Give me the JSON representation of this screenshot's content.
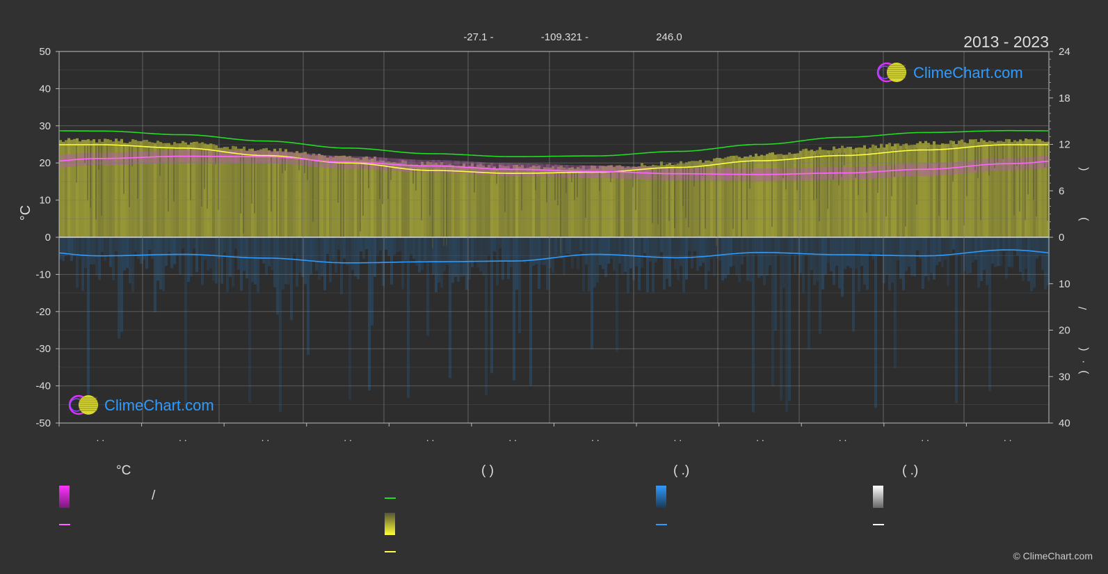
{
  "header": {
    "period": "2013 - 2023",
    "coords": [
      "-27.1 -",
      "-109.321 -",
      "246.0"
    ]
  },
  "brand": {
    "name": "ClimeChart.com",
    "copyright": "© ClimeChart.com"
  },
  "chart_data": {
    "type": "line",
    "ylabel_left": "°C",
    "ylim_left": [
      -50,
      50
    ],
    "yticks_left": [
      "50",
      "40",
      "30",
      "20",
      "10",
      "0",
      "-10",
      "-20",
      "-30",
      "-40",
      "-50"
    ],
    "yticks_right_top": [
      "24",
      "18",
      "12",
      "6",
      "0"
    ],
    "yticks_right_bottom": [
      "10",
      "20",
      "30",
      "40"
    ],
    "right_axis_marks": [
      "(",
      ")",
      "/",
      "(",
      "·",
      ")"
    ],
    "xtick_marks": [
      ". .",
      ". .",
      ". .",
      ". .",
      ". .",
      ". .",
      ". .",
      ". .",
      ". .",
      ". .",
      ". .",
      ". ."
    ],
    "x_months": [
      1,
      2,
      3,
      4,
      5,
      6,
      7,
      8,
      9,
      10,
      11,
      12
    ],
    "series": [
      {
        "key": "daylight",
        "color": "#22dd22",
        "values": [
          28.6,
          27.6,
          25.9,
          24.0,
          22.5,
          21.7,
          21.9,
          23.1,
          25.0,
          26.9,
          28.2,
          28.7
        ]
      },
      {
        "key": "sunshine",
        "color": "#ffff44",
        "values": [
          24.9,
          24.0,
          22.0,
          20.0,
          18.0,
          17.2,
          17.5,
          18.8,
          20.6,
          22.0,
          23.5,
          24.9
        ]
      },
      {
        "key": "temp_mean",
        "color": "#ff66ff",
        "values": [
          21.2,
          21.8,
          21.7,
          20.2,
          19.2,
          18.3,
          17.7,
          17.1,
          16.9,
          17.3,
          18.3,
          19.8
        ]
      },
      {
        "key": "precip_mean",
        "color": "#2e9bff",
        "values": [
          -5.0,
          -4.6,
          -5.6,
          -6.9,
          -6.6,
          -6.4,
          -4.6,
          -5.5,
          -4.1,
          -4.7,
          -5.0,
          -3.4
        ]
      }
    ],
    "area_fill": {
      "sunshine_max": [
        26.7,
        25.9,
        24.1,
        22.1,
        20.4,
        19.5,
        19.4,
        20.6,
        22.8,
        24.7,
        26.0,
        26.8
      ]
    }
  },
  "legend": {
    "col1": {
      "head": "°C",
      "r1": "/"
    },
    "col2": {
      "head": "(            )"
    },
    "col3": {
      "head": "(    .)"
    },
    "col4": {
      "head": "(    .)"
    }
  }
}
